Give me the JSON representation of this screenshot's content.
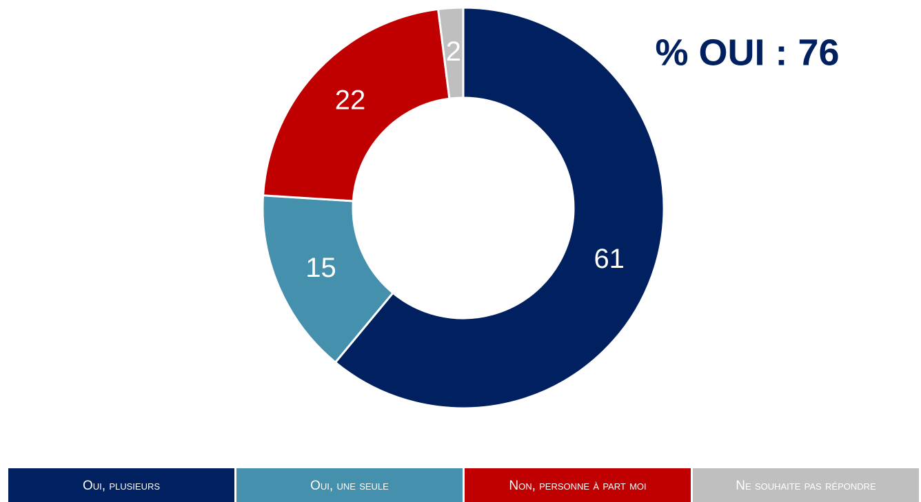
{
  "chart_data": {
    "type": "pie",
    "annotation": "% OUI : 76",
    "categories": [
      "Oui, plusieurs",
      "Oui, une seule",
      "Non, personne à part moi",
      "Ne souhaite pas répondre"
    ],
    "values": [
      61,
      15,
      22,
      2
    ],
    "colors": [
      "#002060",
      "#4590ad",
      "#c00000",
      "#bfbfbf"
    ]
  }
}
